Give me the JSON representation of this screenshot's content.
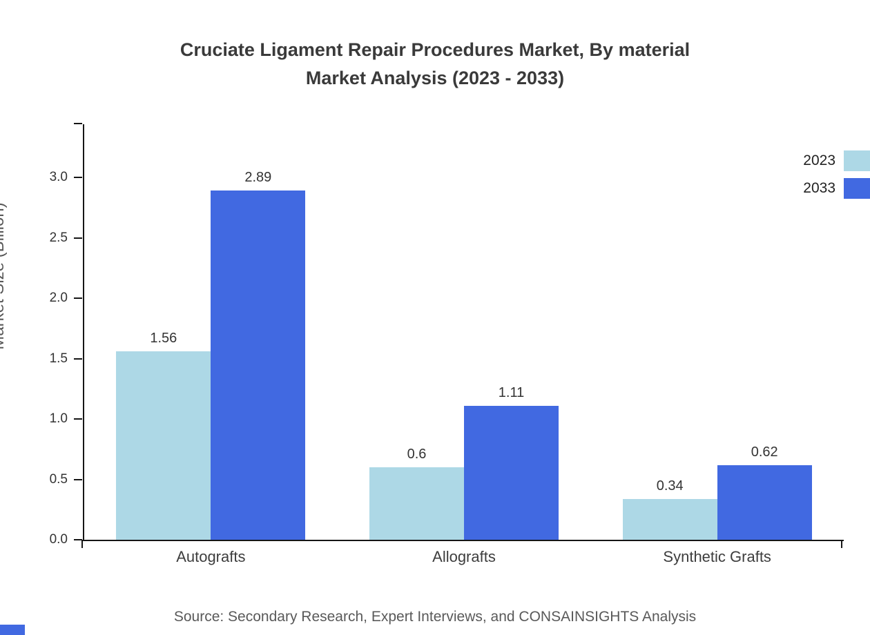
{
  "title": {
    "line1": "Cruciate Ligament Repair Procedures Market, By material",
    "line2": "Market Analysis (2023 - 2033)"
  },
  "source": "Source: Secondary Research, Expert Interviews, and CONSAINSIGHTS Analysis",
  "colors": {
    "series_2023": "#add8e6",
    "series_2033": "#4169e1",
    "axis": "#151515",
    "text": "#333333",
    "muted_text": "#595959",
    "accent": "#4169e1"
  },
  "chart_data": {
    "type": "bar",
    "title": "Cruciate Ligament Repair Procedures Market, By material Market Analysis (2023 - 2033)",
    "categories": [
      "Autografts",
      "Allografts",
      "Synthetic Grafts"
    ],
    "series": [
      {
        "name": "2023",
        "color": "#add8e6",
        "values": [
          1.56,
          0.6,
          0.34
        ]
      },
      {
        "name": "2033",
        "color": "#4169e1",
        "values": [
          2.89,
          1.11,
          0.62
        ]
      }
    ],
    "xlabel": "",
    "ylabel": "Market Size (Billion)",
    "ylim": [
      0,
      3.44
    ],
    "yticks": [
      0.0,
      0.5,
      1.0,
      1.5,
      2.0,
      2.5,
      3.0
    ],
    "grid": false,
    "legend_position": "top-right",
    "value_labels": true
  }
}
